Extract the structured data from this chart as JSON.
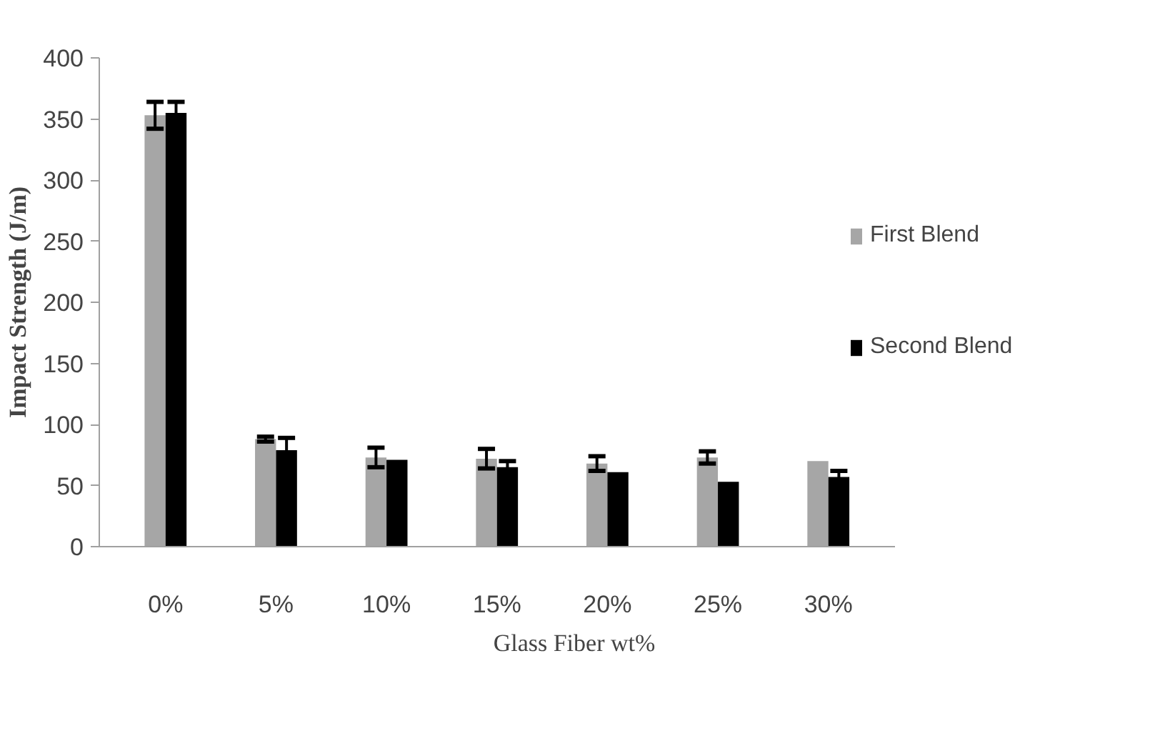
{
  "chart_data": {
    "type": "bar",
    "xlabel": "Glass Fiber wt%",
    "ylabel": "Impact Strength (J/m)",
    "categories": [
      "0%",
      "5%",
      "10%",
      "15%",
      "20%",
      "25%",
      "30%"
    ],
    "series": [
      {
        "name": "First Blend",
        "color": "#a6a6a6",
        "values": [
          353,
          88,
          73,
          72,
          68,
          73,
          70
        ],
        "errors": [
          11,
          2,
          8,
          8,
          6,
          5,
          null
        ]
      },
      {
        "name": "Second Blend",
        "color": "#000000",
        "values": [
          355,
          79,
          71,
          65,
          61,
          53,
          57
        ],
        "errors": [
          9,
          10,
          null,
          5,
          null,
          null,
          5
        ]
      }
    ],
    "ylim": [
      0,
      400
    ],
    "yticks": [
      0,
      50,
      100,
      150,
      200,
      250,
      300,
      350,
      400
    ],
    "grid": false,
    "legend": "right"
  }
}
